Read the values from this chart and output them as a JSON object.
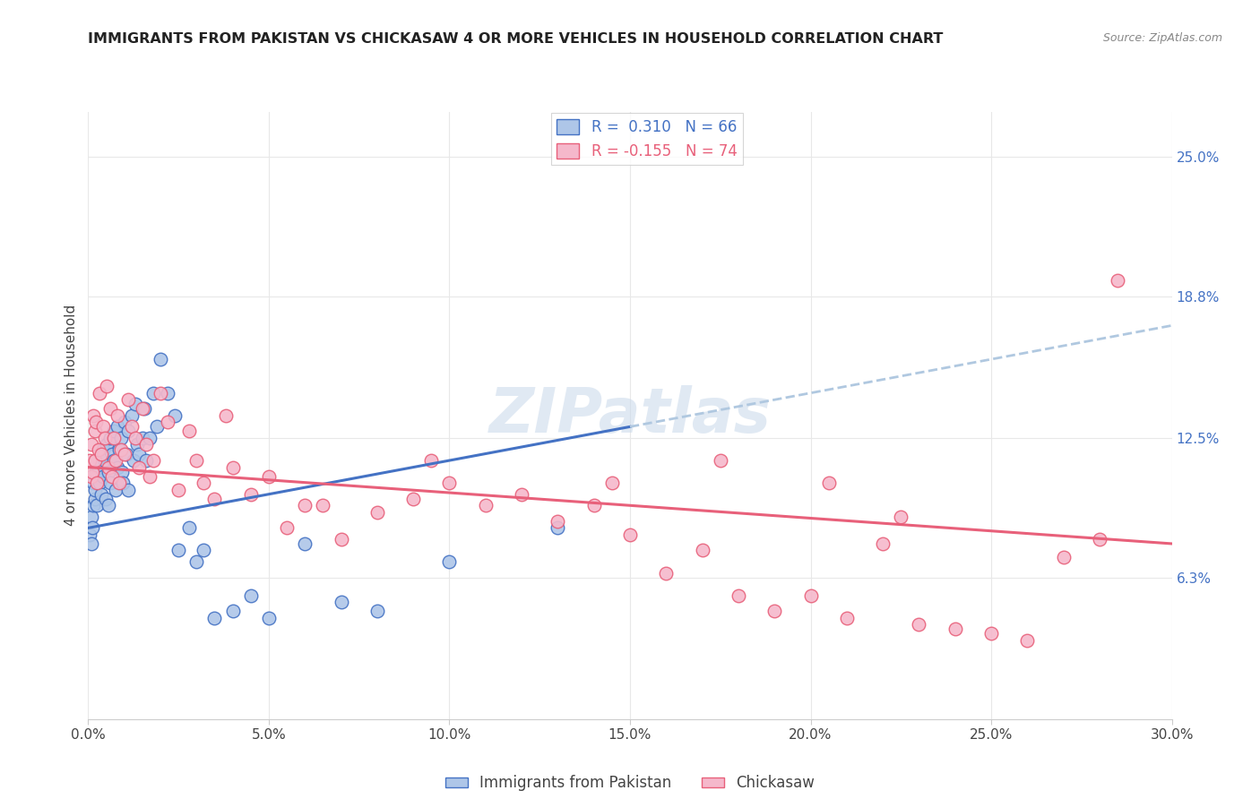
{
  "title": "IMMIGRANTS FROM PAKISTAN VS CHICKASAW 4 OR MORE VEHICLES IN HOUSEHOLD CORRELATION CHART",
  "source": "Source: ZipAtlas.com",
  "ylabel": "4 or more Vehicles in Household",
  "xlim": [
    0.0,
    30.0
  ],
  "ylim": [
    0.0,
    27.0
  ],
  "legend1_label": "Immigrants from Pakistan",
  "legend2_label": "Chickasaw",
  "r1": 0.31,
  "n1": 66,
  "r2": -0.155,
  "n2": 74,
  "color1": "#aec6e8",
  "color2": "#f5b8cb",
  "line1_color": "#4472c4",
  "line2_color": "#e8607a",
  "line_dashed_color": "#b0c8e0",
  "watermark": "ZIPatlas",
  "background_color": "#ffffff",
  "grid_color": "#e8e8e8",
  "right_yticks": [
    6.3,
    12.5,
    18.8,
    25.0
  ],
  "right_ytick_labels": [
    "6.3%",
    "12.5%",
    "18.8%",
    "25.0%"
  ],
  "xtick_vals": [
    0,
    5,
    10,
    15,
    20,
    25,
    30
  ],
  "pak_line_x0": 0.0,
  "pak_line_y0": 8.5,
  "pak_line_x1": 15.0,
  "pak_line_y1": 13.0,
  "pak_dash_x0": 15.0,
  "pak_dash_y0": 13.0,
  "pak_dash_x1": 30.0,
  "pak_dash_y1": 17.5,
  "chick_line_x0": 0.0,
  "chick_line_y0": 11.2,
  "chick_line_x1": 30.0,
  "chick_line_y1": 7.8,
  "pakistan_x": [
    0.05,
    0.08,
    0.1,
    0.12,
    0.15,
    0.15,
    0.18,
    0.2,
    0.22,
    0.25,
    0.25,
    0.28,
    0.3,
    0.32,
    0.35,
    0.38,
    0.4,
    0.42,
    0.45,
    0.48,
    0.5,
    0.55,
    0.55,
    0.6,
    0.62,
    0.65,
    0.7,
    0.72,
    0.75,
    0.8,
    0.82,
    0.85,
    0.9,
    0.92,
    0.95,
    1.0,
    1.05,
    1.1,
    1.1,
    1.2,
    1.25,
    1.3,
    1.35,
    1.4,
    1.5,
    1.55,
    1.6,
    1.7,
    1.8,
    1.9,
    2.0,
    2.2,
    2.4,
    2.5,
    2.8,
    3.0,
    3.2,
    3.5,
    4.0,
    4.5,
    5.0,
    6.0,
    7.0,
    8.0,
    10.0,
    13.0
  ],
  "pakistan_y": [
    8.2,
    7.8,
    9.0,
    8.5,
    9.5,
    10.5,
    9.8,
    10.2,
    11.0,
    10.8,
    9.5,
    11.2,
    10.5,
    11.5,
    10.0,
    11.8,
    12.0,
    10.8,
    11.5,
    9.8,
    12.2,
    11.0,
    9.5,
    12.5,
    10.5,
    11.8,
    12.8,
    11.5,
    10.2,
    13.0,
    11.2,
    12.0,
    12.5,
    11.0,
    10.5,
    13.2,
    11.8,
    12.8,
    10.2,
    13.5,
    11.5,
    14.0,
    12.2,
    11.8,
    12.5,
    13.8,
    11.5,
    12.5,
    14.5,
    13.0,
    16.0,
    14.5,
    13.5,
    7.5,
    8.5,
    7.0,
    7.5,
    4.5,
    4.8,
    5.5,
    4.5,
    7.8,
    5.2,
    4.8,
    7.0,
    8.5
  ],
  "chickasaw_x": [
    0.05,
    0.08,
    0.1,
    0.12,
    0.15,
    0.18,
    0.2,
    0.22,
    0.25,
    0.28,
    0.3,
    0.35,
    0.4,
    0.45,
    0.5,
    0.55,
    0.6,
    0.65,
    0.7,
    0.75,
    0.8,
    0.85,
    0.9,
    1.0,
    1.1,
    1.2,
    1.3,
    1.4,
    1.5,
    1.6,
    1.7,
    1.8,
    2.0,
    2.2,
    2.5,
    2.8,
    3.0,
    3.2,
    3.5,
    4.0,
    4.5,
    5.0,
    5.5,
    6.0,
    7.0,
    8.0,
    9.0,
    10.0,
    11.0,
    12.0,
    13.0,
    14.0,
    15.0,
    16.0,
    17.0,
    18.0,
    19.0,
    20.0,
    21.0,
    22.0,
    23.0,
    24.0,
    25.0,
    26.0,
    27.0,
    28.0,
    28.5,
    17.5,
    20.5,
    22.5,
    9.5,
    14.5,
    6.5,
    3.8
  ],
  "chickasaw_y": [
    11.5,
    10.8,
    12.2,
    11.0,
    13.5,
    12.8,
    11.5,
    13.2,
    10.5,
    12.0,
    14.5,
    11.8,
    13.0,
    12.5,
    14.8,
    11.2,
    13.8,
    10.8,
    12.5,
    11.5,
    13.5,
    10.5,
    12.0,
    11.8,
    14.2,
    13.0,
    12.5,
    11.2,
    13.8,
    12.2,
    10.8,
    11.5,
    14.5,
    13.2,
    10.2,
    12.8,
    11.5,
    10.5,
    9.8,
    11.2,
    10.0,
    10.8,
    8.5,
    9.5,
    8.0,
    9.2,
    9.8,
    10.5,
    9.5,
    10.0,
    8.8,
    9.5,
    8.2,
    6.5,
    7.5,
    5.5,
    4.8,
    5.5,
    4.5,
    7.8,
    4.2,
    4.0,
    3.8,
    3.5,
    7.2,
    8.0,
    19.5,
    11.5,
    10.5,
    9.0,
    11.5,
    10.5,
    9.5,
    13.5
  ]
}
